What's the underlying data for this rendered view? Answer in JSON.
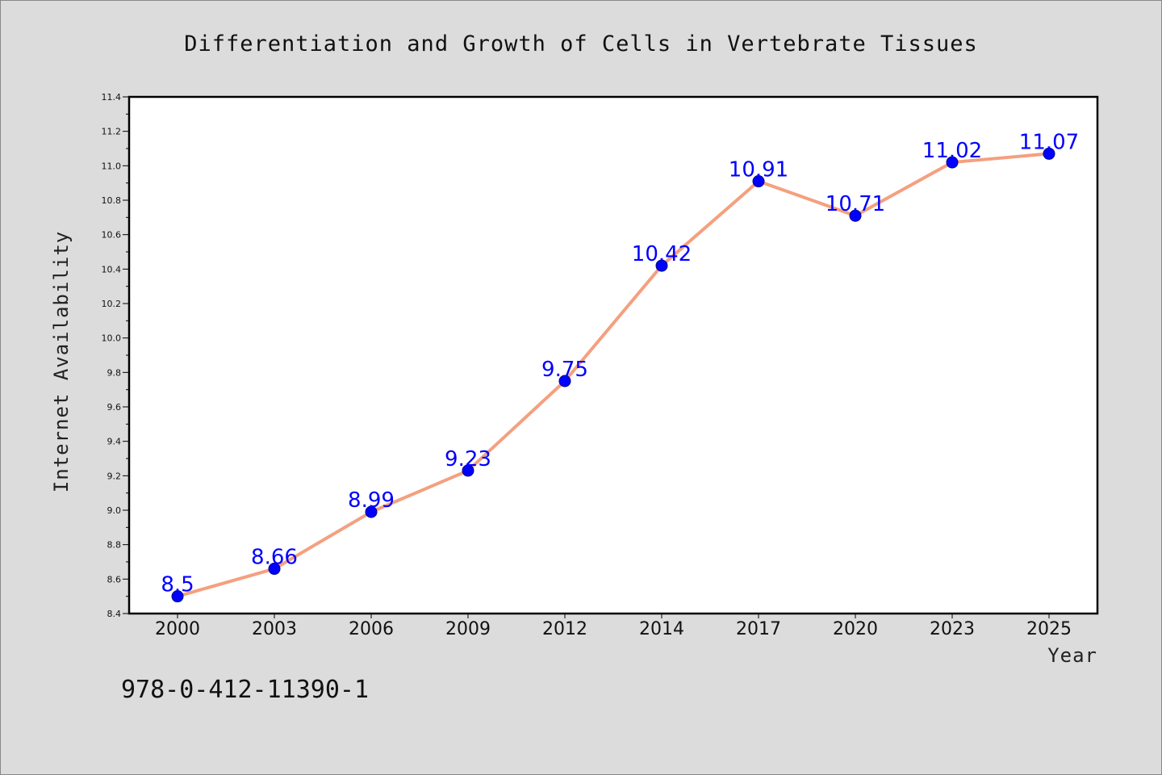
{
  "chart_data": {
    "type": "line",
    "title": "Differentiation and Growth of Cells in Vertebrate Tissues",
    "xlabel": "Year",
    "ylabel": "Internet Availability",
    "categories": [
      "2000",
      "2003",
      "2006",
      "2009",
      "2012",
      "2014",
      "2017",
      "2020",
      "2023",
      "2025"
    ],
    "series": [
      {
        "values": [
          8.5,
          8.66,
          8.99,
          9.23,
          9.75,
          10.42,
          10.91,
          10.71,
          11.02,
          11.07
        ]
      }
    ],
    "data_labels": [
      "8.5",
      "8.66",
      "8.99",
      "9.23",
      "9.75",
      "10.42",
      "10.91",
      "10.71",
      "11.02",
      "11.07"
    ],
    "ylim": [
      8.4,
      11.4
    ],
    "yticks": [
      "8.4",
      "8.6",
      "8.8",
      "9.0",
      "9.2",
      "9.4",
      "9.6",
      "9.8",
      "10.0",
      "10.2",
      "10.4",
      "10.6",
      "10.8",
      "11.0",
      "11.2",
      "11.4"
    ],
    "grid": false,
    "line_color": "#f4a07f",
    "marker_color": "#0000ff",
    "label_color": "#0000ff"
  },
  "annotation": {
    "isbn": "978-0-412-11390-1"
  }
}
